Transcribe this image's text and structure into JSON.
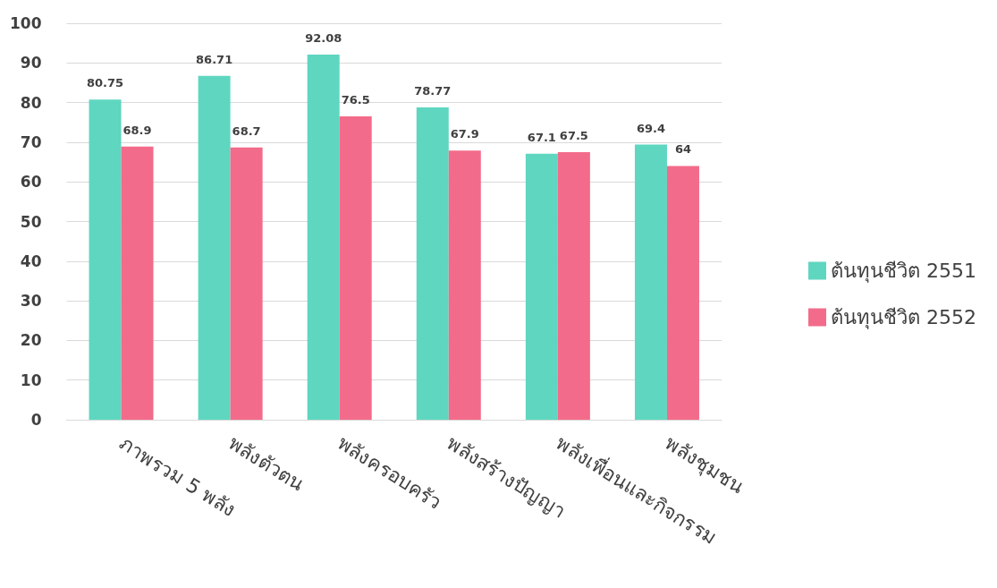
{
  "chart_data": {
    "type": "bar",
    "categories": [
      "ภาพรวม 5 พลัง",
      "พลังตัวตน",
      "พลังครอบครัว",
      "พลังสร้างปัญญา",
      "พลังเพื่อนและกิจกรรม",
      "พลังชุมชน"
    ],
    "series": [
      {
        "name": "ต้นทุนชีวิต 2551",
        "color": "#5fd6c0",
        "values": [
          80.75,
          86.71,
          92.08,
          78.77,
          67.1,
          69.4
        ]
      },
      {
        "name": "ต้นทุนชีวิต 2552",
        "color": "#f36b8a",
        "values": [
          68.9,
          68.7,
          76.5,
          67.9,
          67.5,
          64
        ]
      }
    ],
    "ylim": [
      0,
      100
    ],
    "yticks": [
      0,
      10,
      20,
      30,
      40,
      50,
      60,
      70,
      80,
      90,
      100
    ],
    "grid": "y",
    "legend": "right",
    "data_labels": true
  }
}
